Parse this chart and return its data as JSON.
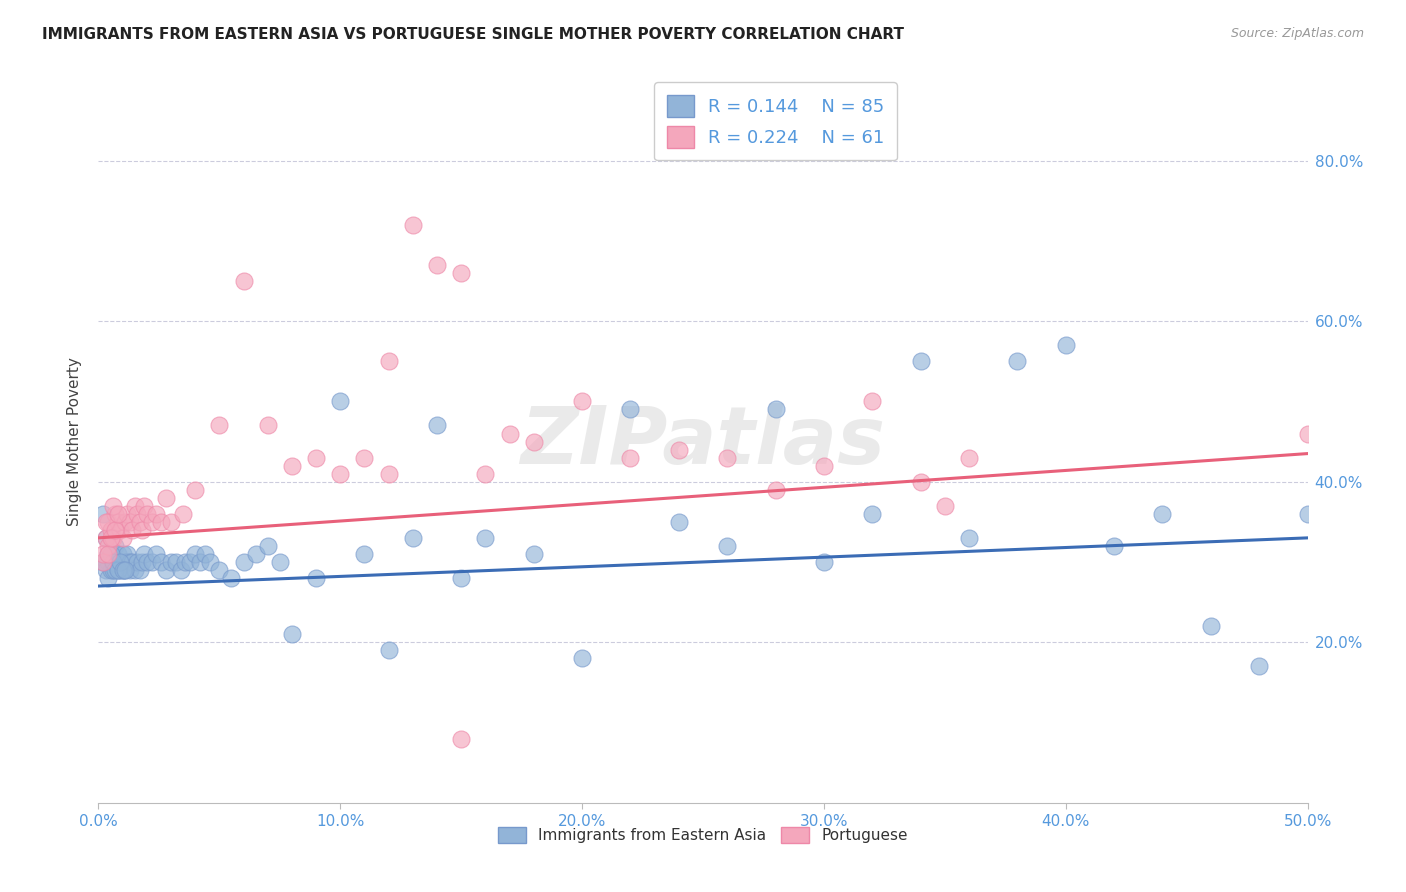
{
  "title": "IMMIGRANTS FROM EASTERN ASIA VS PORTUGUESE SINGLE MOTHER POVERTY CORRELATION CHART",
  "source": "Source: ZipAtlas.com",
  "ylabel": "Single Mother Poverty",
  "xlim": [
    0.0,
    0.5
  ],
  "ylim": [
    0.0,
    0.9
  ],
  "xtick_vals": [
    0.0,
    0.1,
    0.2,
    0.3,
    0.4,
    0.5
  ],
  "ytick_vals": [
    0.2,
    0.4,
    0.6,
    0.8
  ],
  "blue_color": "#92B4D8",
  "pink_color": "#F4A7BC",
  "blue_edge_color": "#7799CC",
  "pink_edge_color": "#EE88A8",
  "blue_line_color": "#3B6CB5",
  "pink_line_color": "#E8607A",
  "tick_color": "#5599DD",
  "legend_R1": "0.144",
  "legend_N1": "85",
  "legend_R2": "0.224",
  "legend_N2": "61",
  "watermark": "ZIPatlas",
  "blue_line_x0": 0.0,
  "blue_line_y0": 0.27,
  "blue_line_x1": 0.5,
  "blue_line_y1": 0.33,
  "pink_line_x0": 0.0,
  "pink_line_y0": 0.33,
  "pink_line_x1": 0.5,
  "pink_line_y1": 0.435,
  "blue_x": [
    0.002,
    0.003,
    0.003,
    0.004,
    0.004,
    0.005,
    0.005,
    0.006,
    0.006,
    0.007,
    0.007,
    0.008,
    0.008,
    0.009,
    0.009,
    0.01,
    0.01,
    0.011,
    0.011,
    0.012,
    0.012,
    0.013,
    0.013,
    0.014,
    0.015,
    0.016,
    0.017,
    0.018,
    0.019,
    0.02,
    0.022,
    0.024,
    0.026,
    0.028,
    0.03,
    0.032,
    0.034,
    0.036,
    0.038,
    0.04,
    0.042,
    0.044,
    0.046,
    0.05,
    0.055,
    0.06,
    0.065,
    0.07,
    0.075,
    0.08,
    0.09,
    0.1,
    0.11,
    0.12,
    0.13,
    0.14,
    0.15,
    0.16,
    0.18,
    0.2,
    0.22,
    0.24,
    0.26,
    0.28,
    0.3,
    0.32,
    0.34,
    0.36,
    0.38,
    0.4,
    0.42,
    0.44,
    0.46,
    0.48,
    0.5,
    0.002,
    0.003,
    0.004,
    0.005,
    0.006,
    0.007,
    0.008,
    0.009,
    0.01,
    0.011
  ],
  "blue_y": [
    0.36,
    0.3,
    0.29,
    0.3,
    0.28,
    0.29,
    0.31,
    0.3,
    0.29,
    0.3,
    0.32,
    0.29,
    0.31,
    0.3,
    0.29,
    0.29,
    0.31,
    0.3,
    0.29,
    0.3,
    0.31,
    0.29,
    0.3,
    0.3,
    0.29,
    0.3,
    0.29,
    0.3,
    0.31,
    0.3,
    0.3,
    0.31,
    0.3,
    0.29,
    0.3,
    0.3,
    0.29,
    0.3,
    0.3,
    0.31,
    0.3,
    0.31,
    0.3,
    0.29,
    0.28,
    0.3,
    0.31,
    0.32,
    0.3,
    0.21,
    0.28,
    0.5,
    0.31,
    0.19,
    0.33,
    0.47,
    0.28,
    0.33,
    0.31,
    0.18,
    0.49,
    0.35,
    0.32,
    0.49,
    0.3,
    0.36,
    0.55,
    0.33,
    0.55,
    0.57,
    0.32,
    0.36,
    0.22,
    0.17,
    0.36,
    0.3,
    0.33,
    0.31,
    0.31,
    0.3,
    0.29,
    0.29,
    0.3,
    0.29,
    0.29
  ],
  "pink_x": [
    0.002,
    0.003,
    0.004,
    0.004,
    0.005,
    0.006,
    0.007,
    0.008,
    0.009,
    0.01,
    0.011,
    0.012,
    0.013,
    0.014,
    0.015,
    0.016,
    0.017,
    0.018,
    0.019,
    0.02,
    0.022,
    0.024,
    0.026,
    0.028,
    0.03,
    0.035,
    0.04,
    0.05,
    0.06,
    0.07,
    0.08,
    0.09,
    0.1,
    0.11,
    0.12,
    0.13,
    0.14,
    0.15,
    0.16,
    0.17,
    0.18,
    0.2,
    0.22,
    0.24,
    0.26,
    0.28,
    0.3,
    0.32,
    0.34,
    0.36,
    0.002,
    0.003,
    0.004,
    0.005,
    0.006,
    0.007,
    0.008,
    0.5,
    0.35,
    0.12,
    0.15
  ],
  "pink_y": [
    0.3,
    0.33,
    0.35,
    0.32,
    0.34,
    0.33,
    0.36,
    0.35,
    0.34,
    0.33,
    0.35,
    0.36,
    0.35,
    0.34,
    0.37,
    0.36,
    0.35,
    0.34,
    0.37,
    0.36,
    0.35,
    0.36,
    0.35,
    0.38,
    0.35,
    0.36,
    0.39,
    0.47,
    0.65,
    0.47,
    0.42,
    0.43,
    0.41,
    0.43,
    0.41,
    0.72,
    0.67,
    0.66,
    0.41,
    0.46,
    0.45,
    0.5,
    0.43,
    0.44,
    0.43,
    0.39,
    0.42,
    0.5,
    0.4,
    0.43,
    0.31,
    0.35,
    0.31,
    0.33,
    0.37,
    0.34,
    0.36,
    0.46,
    0.37,
    0.55,
    0.08
  ]
}
